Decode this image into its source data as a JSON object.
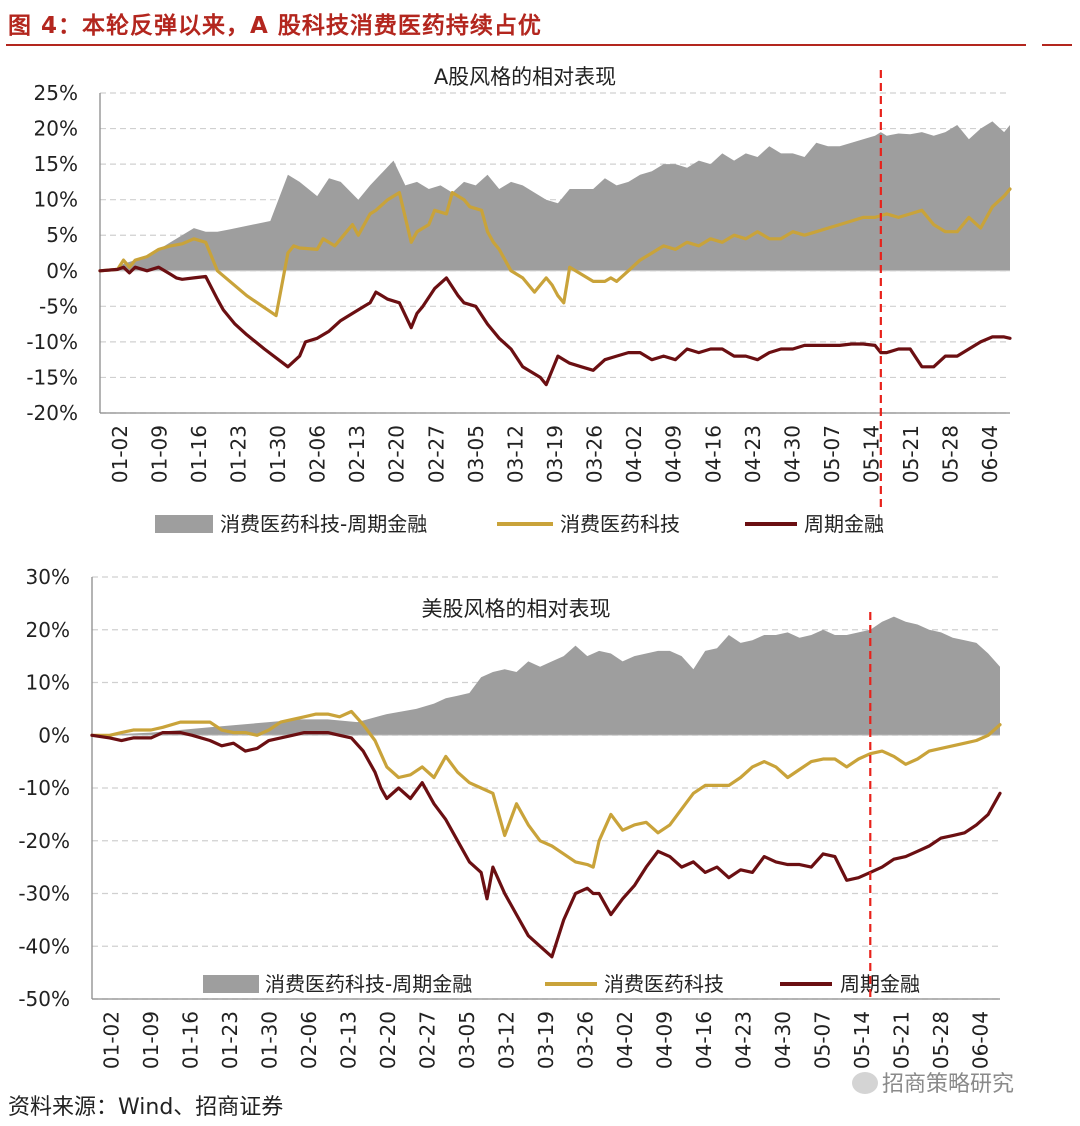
{
  "figure": {
    "title": "图 4：本轮反弹以来，A 股科技消费医药持续占优",
    "source": "资料来源：Wind、招商证券",
    "watermark": "招商策略研究",
    "colors": {
      "spread": "#9e9e9e",
      "tech": "#c9a33a",
      "cyclical": "#6b0f12",
      "marker": "#e8221b",
      "title": "#b3261e"
    }
  },
  "chart_data": [
    {
      "type": "area",
      "title": "A股风格的相对表现",
      "xlabel": "",
      "ylabel": "",
      "ylim": [
        -20,
        25
      ],
      "ytick_labels": [
        "25%",
        "20%",
        "15%",
        "10%",
        "5%",
        "0%",
        "-5%",
        "-10%",
        "-15%",
        "-20%"
      ],
      "ytick_values": [
        25,
        20,
        15,
        10,
        5,
        0,
        -5,
        -10,
        -15,
        -20
      ],
      "xtick_labels": [
        "01-02",
        "01-09",
        "01-16",
        "01-23",
        "01-30",
        "02-06",
        "02-13",
        "02-20",
        "02-27",
        "03-05",
        "03-12",
        "03-19",
        "03-26",
        "04-02",
        "04-09",
        "04-16",
        "04-23",
        "04-30",
        "05-07",
        "05-14",
        "05-21",
        "05-28",
        "06-04"
      ],
      "xlim": [
        0,
        155
      ],
      "grid": true,
      "legend_position": "bottom",
      "marker_line_x": 133,
      "series": [
        {
          "name": "消费医药科技-周期金融",
          "kind": "area",
          "x": [
            0,
            3,
            4,
            6,
            9,
            12,
            16,
            18,
            20,
            22,
            29,
            32,
            34,
            37,
            39,
            41,
            44,
            46,
            50,
            52,
            54,
            56,
            58,
            60,
            62,
            64,
            66,
            68,
            70,
            72,
            74,
            76,
            78,
            80,
            82,
            84,
            86,
            88,
            90,
            92,
            94,
            96,
            98,
            100,
            102,
            104,
            106,
            108,
            110,
            112,
            114,
            116,
            118,
            120,
            122,
            124,
            126,
            128,
            130,
            132,
            133,
            134,
            136,
            138,
            140,
            142,
            144,
            146,
            148,
            150,
            152,
            154,
            155
          ],
          "y": [
            0,
            0.3,
            1.0,
            1.5,
            2.5,
            4.0,
            6.0,
            5.5,
            5.5,
            5.8,
            7.0,
            13.5,
            12.5,
            10.5,
            13.0,
            12.5,
            10.0,
            12.0,
            15.5,
            12.0,
            12.5,
            11.5,
            12.0,
            11.0,
            12.5,
            12.0,
            13.5,
            11.5,
            12.5,
            12.0,
            11.0,
            10.0,
            9.5,
            11.5,
            11.5,
            11.5,
            13.0,
            12.0,
            12.5,
            13.5,
            14.0,
            15.0,
            15.0,
            14.5,
            15.5,
            15.0,
            16.5,
            15.5,
            16.5,
            16.0,
            17.5,
            16.5,
            16.5,
            16.0,
            18.0,
            17.5,
            17.5,
            18.0,
            18.5,
            19.0,
            19.5,
            19.0,
            19.3,
            19.2,
            19.5,
            19.0,
            19.5,
            20.5,
            18.5,
            20.0,
            21.0,
            19.5,
            20.5
          ]
        },
        {
          "name": "消费医药科技",
          "kind": "line",
          "color": "#c9a33a",
          "x": [
            0,
            3,
            4,
            5,
            6,
            8,
            10,
            12,
            14,
            16,
            18,
            20,
            25,
            30,
            32,
            33,
            34,
            37,
            38,
            40,
            41,
            43,
            44,
            46,
            47,
            49,
            51,
            53,
            54,
            56,
            57,
            59,
            60,
            62,
            63,
            65,
            66,
            67,
            68,
            70,
            72,
            74,
            75,
            76,
            77,
            78,
            79,
            80,
            82,
            84,
            86,
            87,
            88,
            90,
            92,
            94,
            95,
            96,
            98,
            100,
            102,
            104,
            106,
            108,
            110,
            112,
            114,
            116,
            118,
            120,
            122,
            124,
            126,
            128,
            130,
            132,
            134,
            136,
            138,
            140,
            142,
            144,
            146,
            148,
            150,
            152,
            154,
            155
          ],
          "y": [
            0,
            0.2,
            1.5,
            0.5,
            1.5,
            2.0,
            3.0,
            3.5,
            3.8,
            4.5,
            4.0,
            0.0,
            -3.5,
            -6.3,
            2.5,
            3.5,
            3.2,
            3.0,
            4.5,
            3.5,
            4.5,
            6.5,
            5.0,
            8.0,
            8.5,
            10.0,
            11.0,
            4.0,
            5.5,
            6.5,
            8.5,
            8.0,
            11.0,
            10.0,
            9.0,
            8.5,
            5.5,
            4.0,
            3.0,
            0.0,
            -1.0,
            -3.0,
            -2.0,
            -1.0,
            -2.0,
            -3.5,
            -4.5,
            0.5,
            -0.5,
            -1.5,
            -1.5,
            -1.0,
            -1.5,
            0.0,
            1.5,
            2.5,
            3.0,
            3.5,
            3.0,
            4.0,
            3.5,
            4.5,
            4.0,
            5.0,
            4.5,
            5.5,
            4.5,
            4.5,
            5.5,
            5.0,
            5.5,
            6.0,
            6.5,
            7.0,
            7.5,
            7.5,
            8.0,
            7.5,
            8.0,
            8.5,
            6.5,
            5.5,
            5.5,
            7.5,
            6.0,
            9.0,
            10.5,
            11.5
          ]
        },
        {
          "name": "周期金融",
          "kind": "line",
          "color": "#6b0f12",
          "x": [
            0,
            3,
            4,
            5,
            6,
            8,
            10,
            12,
            13,
            14,
            16,
            18,
            20,
            21,
            23,
            25,
            28,
            32,
            34,
            35,
            37,
            39,
            41,
            43,
            45,
            46,
            47,
            49,
            51,
            53,
            54,
            55,
            57,
            59,
            61,
            62,
            64,
            66,
            68,
            70,
            72,
            74,
            75,
            76,
            77,
            78,
            79,
            80,
            82,
            84,
            86,
            88,
            90,
            92,
            94,
            96,
            98,
            100,
            102,
            104,
            106,
            108,
            110,
            112,
            114,
            116,
            118,
            120,
            122,
            124,
            126,
            128,
            130,
            132,
            133,
            134,
            136,
            138,
            140,
            142,
            144,
            146,
            148,
            150,
            152,
            154,
            155
          ],
          "y": [
            0,
            0.2,
            0.5,
            -0.3,
            0.5,
            0.0,
            0.5,
            -0.5,
            -1.0,
            -1.2,
            -1.0,
            -0.8,
            -4.0,
            -5.5,
            -7.5,
            -9.0,
            -11.0,
            -13.5,
            -12.0,
            -10.0,
            -9.5,
            -8.5,
            -7.0,
            -6.0,
            -5.0,
            -4.5,
            -3.0,
            -4.0,
            -4.5,
            -8.0,
            -6.0,
            -5.0,
            -2.5,
            -1.0,
            -3.5,
            -4.5,
            -5.0,
            -7.5,
            -9.5,
            -11.0,
            -13.5,
            -14.5,
            -15.0,
            -16.0,
            -14.0,
            -12.0,
            -12.5,
            -13.0,
            -13.5,
            -14.0,
            -12.5,
            -12.0,
            -11.5,
            -11.5,
            -12.5,
            -12.0,
            -12.5,
            -11.0,
            -11.5,
            -11.0,
            -11.0,
            -12.0,
            -12.0,
            -12.5,
            -11.5,
            -11.0,
            -11.0,
            -10.5,
            -10.5,
            -10.5,
            -10.5,
            -10.3,
            -10.3,
            -10.5,
            -11.5,
            -11.5,
            -11.0,
            -11.0,
            -13.5,
            -13.5,
            -12.0,
            -12.0,
            -11.0,
            -10.0,
            -9.3,
            -9.3,
            -9.5
          ]
        }
      ]
    },
    {
      "type": "area",
      "title": "美股风格的相对表现",
      "xlabel": "",
      "ylabel": "",
      "ylim": [
        -50,
        30
      ],
      "ytick_labels": [
        "30%",
        "20%",
        "10%",
        "0%",
        "-10%",
        "-20%",
        "-30%",
        "-40%",
        "-50%"
      ],
      "ytick_values": [
        30,
        20,
        10,
        0,
        -10,
        -20,
        -30,
        -40,
        -50
      ],
      "xtick_labels": [
        "01-02",
        "01-09",
        "01-16",
        "01-23",
        "01-30",
        "02-06",
        "02-13",
        "02-20",
        "02-27",
        "03-05",
        "03-12",
        "03-19",
        "03-26",
        "04-02",
        "04-09",
        "04-16",
        "04-23",
        "04-30",
        "05-07",
        "05-14",
        "05-21",
        "05-28",
        "06-04"
      ],
      "xlim": [
        0,
        154
      ],
      "grid": true,
      "legend_position": "bottom",
      "marker_line_x": 132,
      "series": [
        {
          "name": "消费医药科技-周期金融",
          "kind": "area",
          "x": [
            0,
            10,
            20,
            30,
            35,
            40,
            45,
            50,
            55,
            58,
            60,
            62,
            64,
            66,
            68,
            70,
            72,
            74,
            76,
            78,
            80,
            82,
            84,
            86,
            88,
            90,
            92,
            94,
            96,
            98,
            100,
            102,
            104,
            106,
            108,
            110,
            112,
            114,
            116,
            118,
            120,
            122,
            124,
            126,
            128,
            130,
            132,
            134,
            136,
            138,
            140,
            142,
            144,
            146,
            148,
            150,
            152,
            154
          ],
          "y": [
            0,
            0.5,
            1.5,
            2.5,
            3.0,
            3.0,
            2.5,
            4.0,
            5.0,
            6.0,
            7.0,
            7.5,
            8.0,
            11.0,
            12.0,
            12.5,
            12.0,
            14.0,
            13.0,
            14.0,
            15.0,
            17.0,
            15.0,
            16.0,
            15.5,
            14.0,
            15.0,
            15.5,
            16.0,
            16.0,
            15.0,
            12.5,
            16.0,
            16.5,
            19.0,
            17.5,
            18.0,
            19.0,
            19.0,
            19.5,
            18.5,
            19.0,
            20.0,
            19.0,
            19.0,
            19.5,
            20.0,
            21.5,
            22.5,
            21.5,
            21.0,
            20.0,
            19.5,
            18.5,
            18.0,
            17.5,
            15.5,
            13.0
          ]
        },
        {
          "name": "消费医药科技",
          "kind": "line",
          "color": "#c9a33a",
          "x": [
            0,
            3,
            5,
            7,
            10,
            12,
            15,
            17,
            20,
            22,
            24,
            26,
            28,
            30,
            32,
            34,
            36,
            38,
            40,
            42,
            44,
            46,
            48,
            50,
            52,
            54,
            56,
            58,
            60,
            62,
            64,
            66,
            68,
            70,
            72,
            74,
            76,
            78,
            80,
            82,
            84,
            85,
            86,
            88,
            90,
            92,
            94,
            96,
            98,
            100,
            102,
            104,
            106,
            108,
            110,
            112,
            114,
            116,
            118,
            120,
            122,
            124,
            126,
            128,
            130,
            132,
            134,
            136,
            138,
            140,
            142,
            144,
            146,
            148,
            150,
            152,
            154
          ],
          "y": [
            0,
            0,
            0.5,
            1.0,
            1.0,
            1.5,
            2.5,
            2.5,
            2.5,
            1.0,
            0.5,
            0.5,
            0,
            1.0,
            2.5,
            3.0,
            3.5,
            4.0,
            4.0,
            3.5,
            4.5,
            2.0,
            -1.0,
            -6.0,
            -8.0,
            -7.5,
            -6.0,
            -8.0,
            -4.0,
            -7.0,
            -9.0,
            -10.0,
            -11.0,
            -19.0,
            -13.0,
            -17.0,
            -20.0,
            -21.0,
            -22.5,
            -24.0,
            -24.5,
            -25.0,
            -20.0,
            -15.0,
            -18.0,
            -17.0,
            -16.5,
            -18.5,
            -17.0,
            -14.0,
            -11.0,
            -9.5,
            -9.5,
            -9.5,
            -8.0,
            -6.0,
            -5.0,
            -6.0,
            -8.0,
            -6.5,
            -5.0,
            -4.5,
            -4.5,
            -6.0,
            -4.5,
            -3.5,
            -3.0,
            -4.0,
            -5.5,
            -4.5,
            -3.0,
            -2.5,
            -2.0,
            -1.5,
            -1.0,
            0,
            2.0
          ]
        },
        {
          "name": "周期金融",
          "kind": "line",
          "color": "#6b0f12",
          "x": [
            0,
            3,
            5,
            7,
            10,
            12,
            15,
            17,
            20,
            22,
            24,
            26,
            28,
            30,
            32,
            34,
            36,
            38,
            40,
            42,
            44,
            46,
            48,
            49,
            50,
            52,
            54,
            56,
            58,
            60,
            62,
            64,
            66,
            67,
            68,
            70,
            72,
            74,
            76,
            78,
            80,
            82,
            84,
            85,
            86,
            88,
            90,
            92,
            94,
            96,
            98,
            100,
            102,
            104,
            106,
            108,
            110,
            112,
            114,
            116,
            118,
            120,
            122,
            124,
            126,
            128,
            130,
            132,
            134,
            136,
            138,
            140,
            142,
            144,
            146,
            148,
            150,
            152,
            154
          ],
          "y": [
            0,
            -0.5,
            -1.0,
            -0.5,
            -0.5,
            0.5,
            0.5,
            0,
            -1.0,
            -2.0,
            -1.5,
            -3.0,
            -2.5,
            -1.0,
            -0.5,
            0,
            0.5,
            0.5,
            0.5,
            0,
            -0.5,
            -3.0,
            -7.0,
            -10.0,
            -12.0,
            -10.0,
            -12.0,
            -9.0,
            -13.0,
            -16.0,
            -20.0,
            -24.0,
            -26.0,
            -31.0,
            -25.0,
            -30.0,
            -34.0,
            -38.0,
            -40.0,
            -42.0,
            -35.0,
            -30.0,
            -29.0,
            -30.0,
            -30.0,
            -34.0,
            -31.0,
            -28.5,
            -25.0,
            -22.0,
            -23.0,
            -25.0,
            -24.0,
            -26.0,
            -25.0,
            -27.0,
            -25.5,
            -26.0,
            -23.0,
            -24.0,
            -24.5,
            -24.5,
            -25.0,
            -22.5,
            -23.0,
            -27.5,
            -27.0,
            -26.0,
            -25.0,
            -23.5,
            -23.0,
            -22.0,
            -21.0,
            -19.5,
            -19.0,
            -18.5,
            -17.0,
            -15.0,
            -11.0
          ]
        }
      ]
    }
  ]
}
